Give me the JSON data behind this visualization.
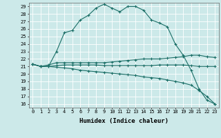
{
  "xlabel": "Humidex (Indice chaleur)",
  "ylabel": "",
  "bg_color": "#cce9e9",
  "grid_color": "#b0d4d4",
  "line_color": "#1a6e66",
  "xlim": [
    -0.5,
    23.5
  ],
  "ylim": [
    15.5,
    29.5
  ],
  "yticks": [
    16,
    17,
    18,
    19,
    20,
    21,
    22,
    23,
    24,
    25,
    26,
    27,
    28,
    29
  ],
  "xticks": [
    0,
    1,
    2,
    3,
    4,
    5,
    6,
    7,
    8,
    9,
    10,
    11,
    12,
    13,
    14,
    15,
    16,
    17,
    18,
    19,
    20,
    21,
    22,
    23
  ],
  "series": [
    {
      "x": [
        0,
        1,
        2,
        3,
        4,
        5,
        6,
        7,
        8,
        9,
        10,
        11,
        12,
        13,
        14,
        15,
        16,
        17,
        18,
        19,
        20,
        21,
        22,
        23
      ],
      "y": [
        21.3,
        21.0,
        21.0,
        23.0,
        25.5,
        25.8,
        27.2,
        27.8,
        28.8,
        29.3,
        28.8,
        28.3,
        29.0,
        29.0,
        28.5,
        27.2,
        26.8,
        26.3,
        24.0,
        22.5,
        20.5,
        18.0,
        16.5,
        16.0
      ]
    },
    {
      "x": [
        0,
        1,
        2,
        3,
        4,
        5,
        6,
        7,
        8,
        9,
        10,
        11,
        12,
        13,
        14,
        15,
        16,
        17,
        18,
        19,
        20,
        21,
        22,
        23
      ],
      "y": [
        21.3,
        21.0,
        21.0,
        21.1,
        21.2,
        21.2,
        21.2,
        21.2,
        21.2,
        21.1,
        21.1,
        21.1,
        21.1,
        21.1,
        21.1,
        21.1,
        21.2,
        21.2,
        21.2,
        21.2,
        21.1,
        21.0,
        21.0,
        21.0
      ]
    },
    {
      "x": [
        0,
        1,
        2,
        3,
        4,
        5,
        6,
        7,
        8,
        9,
        10,
        11,
        12,
        13,
        14,
        15,
        16,
        17,
        18,
        19,
        20,
        21,
        22,
        23
      ],
      "y": [
        21.3,
        21.0,
        21.2,
        21.5,
        21.5,
        21.5,
        21.5,
        21.5,
        21.5,
        21.5,
        21.6,
        21.7,
        21.8,
        21.9,
        22.0,
        22.0,
        22.0,
        22.1,
        22.2,
        22.3,
        22.5,
        22.5,
        22.3,
        22.2
      ]
    },
    {
      "x": [
        0,
        1,
        2,
        3,
        4,
        5,
        6,
        7,
        8,
        9,
        10,
        11,
        12,
        13,
        14,
        15,
        16,
        17,
        18,
        19,
        20,
        21,
        22,
        23
      ],
      "y": [
        21.3,
        21.0,
        21.0,
        20.9,
        20.8,
        20.7,
        20.5,
        20.4,
        20.3,
        20.2,
        20.1,
        20.0,
        19.9,
        19.8,
        19.6,
        19.5,
        19.4,
        19.2,
        19.0,
        18.8,
        18.5,
        17.8,
        17.0,
        16.0
      ]
    }
  ]
}
